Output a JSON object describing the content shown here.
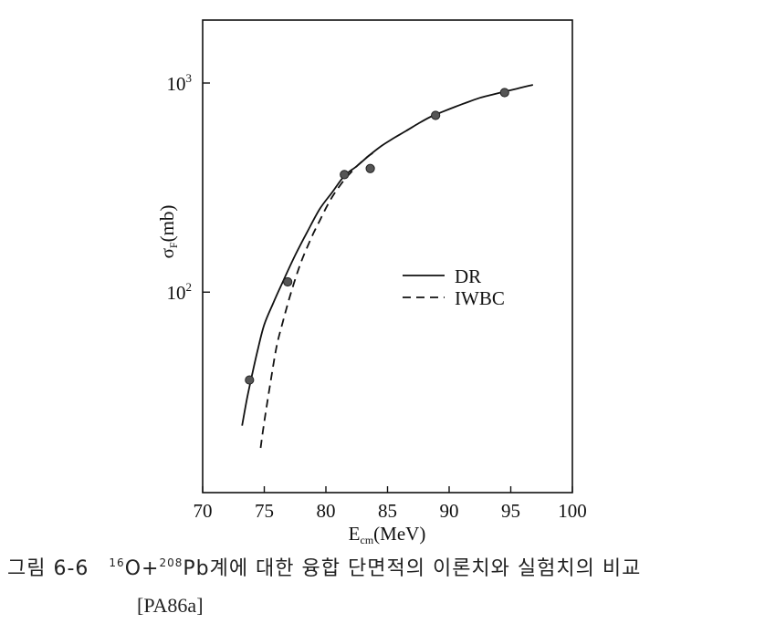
{
  "chart_data": {
    "type": "line",
    "xlabel": {
      "main": "E",
      "sub": "cm",
      "unit": "(MeV)"
    },
    "ylabel": {
      "main": "σ",
      "sub": "F",
      "unit": "(mb)"
    },
    "x_ticks": [
      "70",
      "75",
      "80",
      "85",
      "90",
      "95",
      "100"
    ],
    "y_ticks": [
      {
        "value": 100,
        "base": "10",
        "exp": "2"
      },
      {
        "value": 1000,
        "base": "10",
        "exp": "3"
      }
    ],
    "y_scale": "log",
    "xlim": [
      70,
      100
    ],
    "ylim": [
      11,
      2000
    ],
    "grid": false,
    "legend_position": "center-right",
    "series": [
      {
        "name": "DR",
        "style": "solid",
        "x": [
          73.2,
          73.6,
          74.0,
          74.5,
          75.0,
          75.7,
          76.5,
          77.5,
          78.5,
          79.5,
          80.5,
          81.5,
          82.5,
          83.5,
          84.5,
          85.5,
          86.5,
          87.5,
          88.5,
          89.5,
          90.5,
          91.5,
          92.5,
          93.5,
          94.5,
          95.5,
          96.8
        ],
        "y": [
          23,
          31,
          40,
          54,
          70,
          88,
          112,
          150,
          195,
          250,
          300,
          360,
          400,
          450,
          500,
          545,
          590,
          640,
          690,
          730,
          770,
          810,
          850,
          880,
          910,
          940,
          980
        ]
      },
      {
        "name": "IWBC",
        "style": "dashed",
        "x": [
          74.7,
          75.0,
          75.5,
          76.0,
          76.5,
          77.0,
          77.5,
          78.0,
          78.5,
          79.0,
          79.5,
          80.0,
          80.5,
          81.0,
          81.5,
          82.0,
          82.5,
          83.0,
          83.5,
          84.0
        ],
        "y": [
          18,
          24,
          37,
          55,
          72,
          92,
          115,
          140,
          165,
          192,
          220,
          252,
          285,
          315,
          345,
          372,
          400,
          425,
          450,
          470
        ]
      },
      {
        "name": "",
        "style": "points",
        "x": [
          73.8,
          76.9,
          81.5,
          83.6,
          88.9,
          94.5
        ],
        "y": [
          38,
          112,
          365,
          390,
          700,
          900
        ]
      }
    ]
  },
  "caption": {
    "figure_number": "그림 6-6",
    "mass_16": "16",
    "o_symbol": "O+",
    "mass_208": "208",
    "text_rest": "Pb계에 대한 융합 단면적의 이론치와 실험치의 비교",
    "reference": "[PA86a]"
  }
}
